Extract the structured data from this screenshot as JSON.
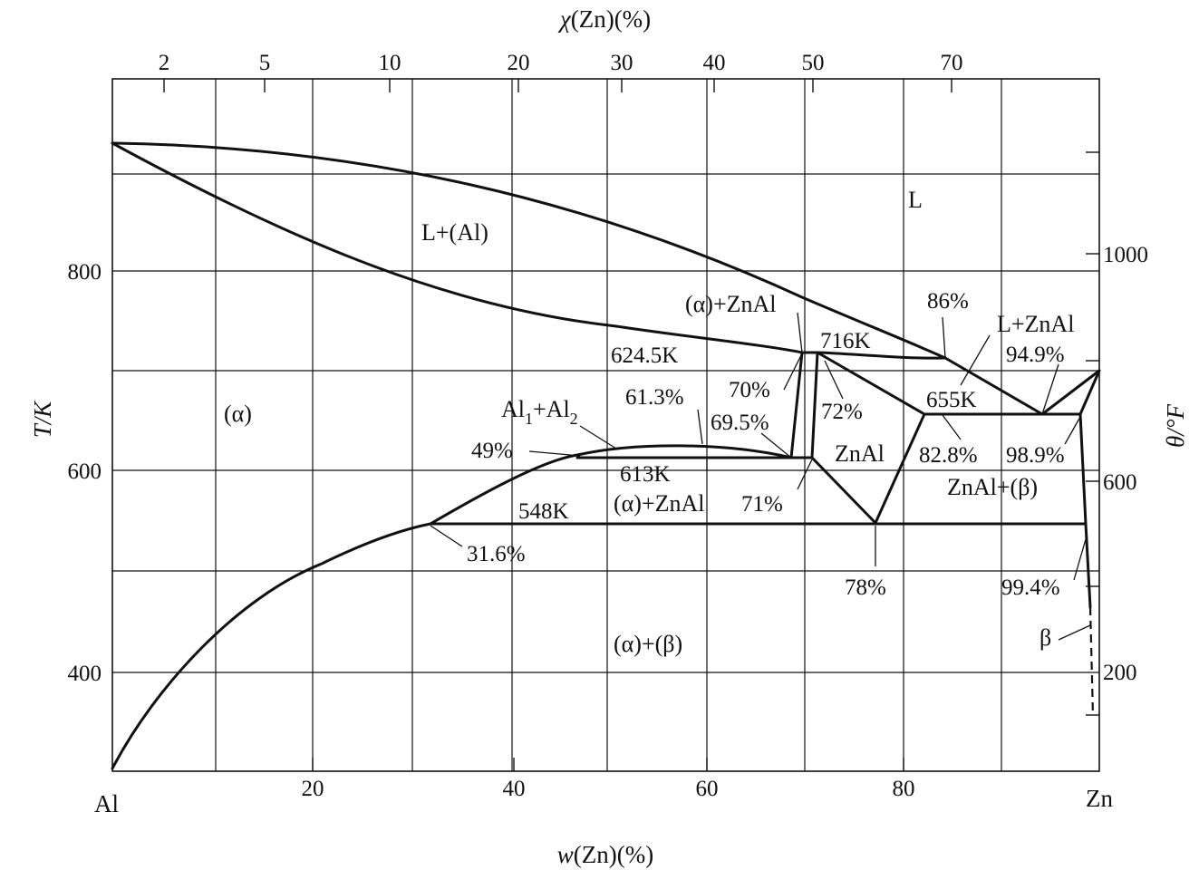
{
  "diagram": {
    "axes": {
      "top_title_chi": "χ",
      "top_title_rest": "(Zn)(%)",
      "top_ticks": [
        "2",
        "5",
        "10",
        "20",
        "30",
        "40",
        "50",
        "70"
      ],
      "bottom_title_w": "w",
      "bottom_title_rest": "(Zn)(%)",
      "bottom_ticks": [
        "20",
        "40",
        "60",
        "80"
      ],
      "left_title": "T/K",
      "left_ticks": [
        "800",
        "600",
        "400"
      ],
      "right_title": "θ/°F",
      "right_ticks": [
        "1000",
        "600",
        "200"
      ],
      "corner_left": "Al",
      "corner_right": "Zn"
    },
    "regions": {
      "liquid": "L",
      "l_plus_al": "L+(Al)",
      "alpha": "(α)",
      "al1_al2_main": "Al",
      "al1_sub": "1",
      "al2_plus": "+Al",
      "al2_sub": "2",
      "alpha_znal_upper": "(α)+ZnAl",
      "alpha_znal_lower": "(α)+ZnAl",
      "znal": "ZnAl",
      "l_plus_znal": "L+ZnAl",
      "znal_beta": "ZnAl+(β)",
      "alpha_beta": "(α)+(β)",
      "beta": "β"
    },
    "annotations": {
      "t_716": "716K",
      "t_624": "624.5K",
      "t_655": "655K",
      "t_613": "613K",
      "t_548": "548K",
      "c_86": "86%",
      "c_949": "94.9%",
      "c_70": "70%",
      "c_72": "72%",
      "c_613": "61.3%",
      "c_695": "69.5%",
      "c_49": "49%",
      "c_828": "82.8%",
      "c_989": "98.9%",
      "c_71": "71%",
      "c_316": "31.6%",
      "c_78": "78%",
      "c_994": "99.4%"
    }
  }
}
